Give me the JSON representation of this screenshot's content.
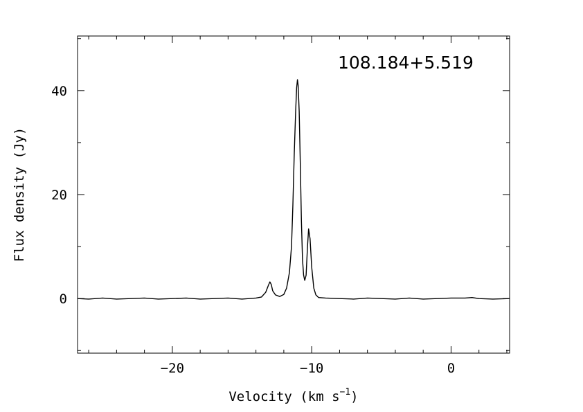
{
  "chart_data": {
    "type": "line",
    "title": "108.184+5.519",
    "xlabel": "Velocity (km s",
    "xlabel_unit_sup": "−1",
    "xlabel_close": ")",
    "ylabel": "Flux density (Jy)",
    "xlim": [
      -26.8,
      4.2
    ],
    "ylim": [
      -10.5,
      50.5
    ],
    "x_ticks": [
      -20,
      -10,
      0
    ],
    "x_tick_labels": [
      "−20",
      "−10",
      "0"
    ],
    "y_ticks": [
      0,
      20,
      40
    ],
    "y_tick_labels": [
      "0",
      "20",
      "40"
    ],
    "grid": false,
    "legend": "none",
    "series": [
      {
        "x": [
          -26.8,
          -26.0,
          -25.0,
          -24.0,
          -23.0,
          -22.0,
          -21.0,
          -20.0,
          -19.0,
          -18.0,
          -17.0,
          -16.0,
          -15.0,
          -14.0,
          -13.6,
          -13.3,
          -13.1,
          -13.0,
          -12.9,
          -12.8,
          -12.6,
          -12.3,
          -12.0,
          -11.8,
          -11.6,
          -11.45,
          -11.35,
          -11.25,
          -11.15,
          -11.08,
          -11.02,
          -10.97,
          -10.9,
          -10.82,
          -10.74,
          -10.66,
          -10.58,
          -10.5,
          -10.4,
          -10.3,
          -10.22,
          -10.12,
          -10.0,
          -9.85,
          -9.7,
          -9.5,
          -9.0,
          -8.0,
          -7.0,
          -6.0,
          -5.0,
          -4.0,
          -3.0,
          -2.0,
          -1.0,
          0.0,
          1.0,
          1.5,
          2.0,
          3.0,
          4.2
        ],
        "y": [
          0.0,
          -0.1,
          0.1,
          -0.1,
          0.0,
          0.1,
          -0.1,
          0.0,
          0.1,
          -0.1,
          0.0,
          0.1,
          -0.1,
          0.1,
          0.3,
          1.2,
          2.6,
          3.2,
          2.7,
          1.5,
          0.7,
          0.4,
          0.8,
          2.0,
          5.0,
          10.0,
          18.0,
          28.0,
          36.0,
          40.5,
          42.1,
          41.0,
          36.0,
          26.0,
          15.0,
          7.5,
          4.5,
          3.5,
          4.5,
          10.0,
          13.4,
          11.5,
          6.0,
          2.0,
          0.7,
          0.2,
          0.1,
          0.0,
          -0.1,
          0.1,
          0.0,
          -0.1,
          0.1,
          -0.1,
          0.0,
          0.1,
          0.1,
          0.2,
          0.0,
          -0.1,
          0.0
        ]
      }
    ]
  }
}
